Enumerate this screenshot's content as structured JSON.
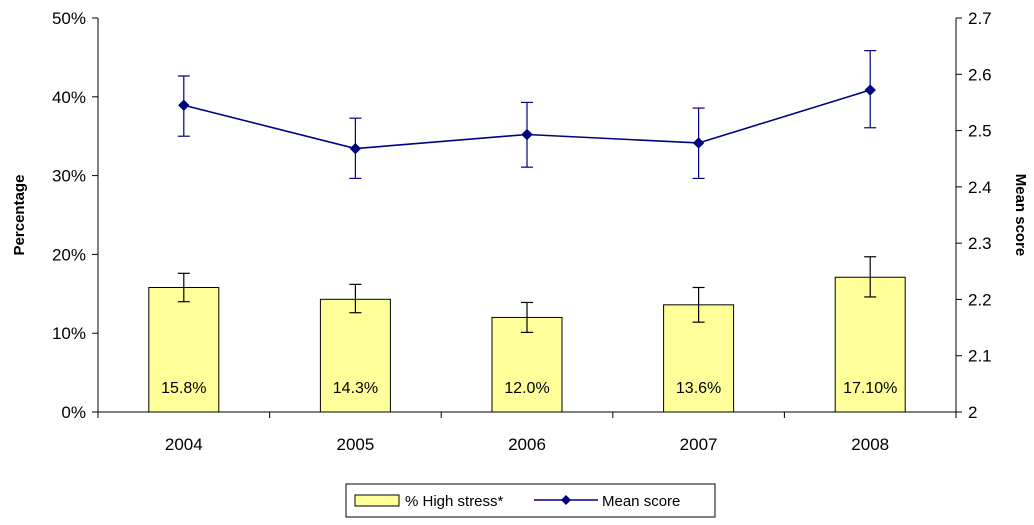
{
  "chart_data": {
    "type": "bar",
    "categories": [
      "2004",
      "2005",
      "2006",
      "2007",
      "2008"
    ],
    "series": [
      {
        "name": "% High stress*",
        "kind": "bar",
        "axis": "left",
        "values": [
          15.8,
          14.3,
          12.0,
          13.6,
          17.1
        ],
        "error_low": [
          14.0,
          12.6,
          10.1,
          11.4,
          14.6
        ],
        "error_high": [
          17.6,
          16.2,
          13.9,
          15.8,
          19.7
        ],
        "labels": [
          "15.8%",
          "14.3%",
          "12.0%",
          "13.6%",
          "17.10%"
        ],
        "color": "#ffff99"
      },
      {
        "name": "Mean score",
        "kind": "line",
        "axis": "right",
        "marker": "diamond",
        "values": [
          2.545,
          2.468,
          2.493,
          2.478,
          2.572
        ],
        "error_low": [
          2.49,
          2.415,
          2.435,
          2.415,
          2.505
        ],
        "error_high": [
          2.597,
          2.522,
          2.55,
          2.54,
          2.642
        ],
        "color": "#000080"
      }
    ],
    "ylabel": "Percentage",
    "y2label": "Mean score",
    "ylim": [
      0,
      50
    ],
    "y2lim": [
      2,
      2.7
    ],
    "yticks": [
      "0%",
      "10%",
      "20%",
      "30%",
      "40%",
      "50%"
    ],
    "y2ticks": [
      "2",
      "2.1",
      "2.2",
      "2.3",
      "2.4",
      "2.5",
      "2.6",
      "2.7"
    ],
    "grid": false,
    "legend_position": "bottom"
  }
}
